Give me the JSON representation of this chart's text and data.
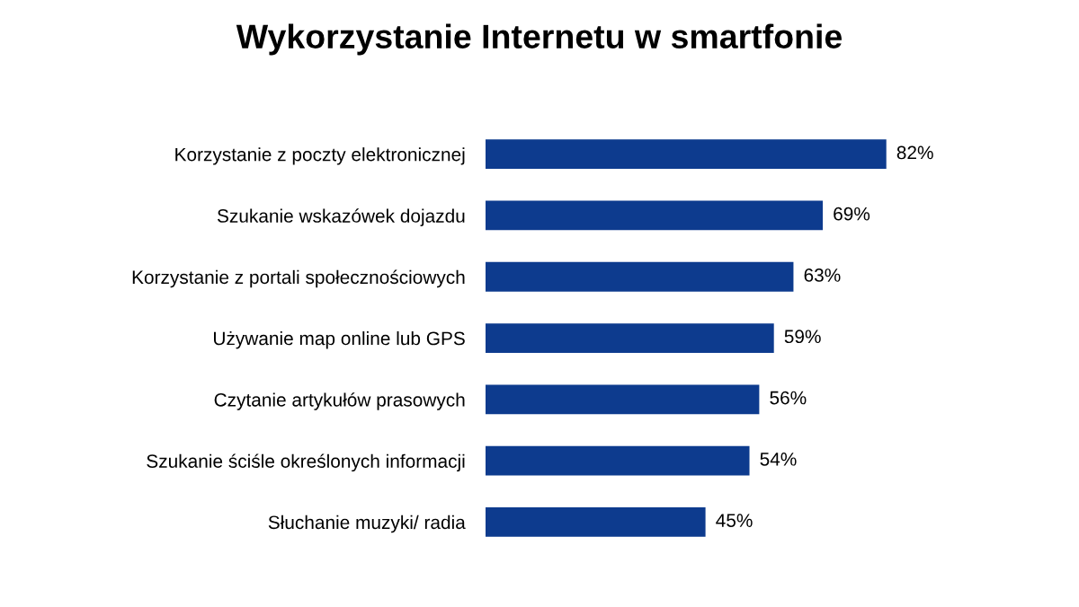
{
  "chart_data": {
    "type": "bar",
    "orientation": "horizontal",
    "title": "Wykorzystanie Internetu w smartfonie",
    "categories": [
      "Korzystanie z poczty elektronicznej",
      "Szukanie wskazówek dojazdu",
      "Korzystanie z portali społecznościowych",
      "Używanie map online lub GPS",
      "Czytanie artykułów prasowych",
      "Szukanie ściśle określonych informacji",
      "Słuchanie muzyki/ radia"
    ],
    "values": [
      82,
      69,
      63,
      59,
      56,
      54,
      45
    ],
    "value_labels": [
      "82%",
      "69%",
      "63%",
      "59%",
      "56%",
      "54%",
      "45%"
    ],
    "color": "#0d3b8e",
    "grid": false,
    "legend": false
  }
}
